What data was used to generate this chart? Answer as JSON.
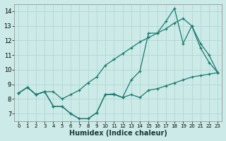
{
  "xlabel": "Humidex (Indice chaleur)",
  "bg_color": "#cceae8",
  "line_color": "#1a7a6e",
  "grid_color": "#aad4d0",
  "xlim": [
    -0.5,
    23.5
  ],
  "ylim": [
    6.5,
    14.5
  ],
  "xticks": [
    0,
    1,
    2,
    3,
    4,
    5,
    6,
    7,
    8,
    9,
    10,
    11,
    12,
    13,
    14,
    15,
    16,
    17,
    18,
    19,
    20,
    21,
    22,
    23
  ],
  "yticks": [
    7,
    8,
    9,
    10,
    11,
    12,
    13,
    14
  ],
  "series1_x": [
    0,
    1,
    2,
    3,
    4,
    5,
    6,
    7,
    8,
    9,
    10,
    11,
    12,
    13,
    14,
    15,
    16,
    17,
    18,
    19,
    20,
    21,
    22,
    23
  ],
  "series1_y": [
    8.4,
    8.8,
    8.3,
    8.5,
    7.5,
    7.5,
    7.0,
    6.65,
    6.65,
    7.05,
    8.3,
    8.3,
    8.1,
    9.3,
    9.9,
    12.5,
    12.5,
    13.3,
    14.2,
    11.8,
    13.0,
    11.8,
    11.0,
    9.8
  ],
  "series2_x": [
    0,
    1,
    2,
    3,
    4,
    5,
    6,
    7,
    8,
    9,
    10,
    11,
    12,
    13,
    14,
    15,
    16,
    17,
    18,
    19,
    20,
    21,
    22,
    23
  ],
  "series2_y": [
    8.4,
    8.8,
    8.3,
    8.5,
    8.5,
    8.0,
    8.3,
    8.6,
    9.1,
    9.5,
    10.3,
    10.7,
    11.1,
    11.5,
    11.9,
    12.2,
    12.5,
    12.8,
    13.2,
    13.5,
    13.0,
    11.5,
    10.5,
    9.8
  ],
  "series3_x": [
    0,
    1,
    2,
    3,
    4,
    5,
    6,
    7,
    8,
    9,
    10,
    11,
    12,
    13,
    14,
    15,
    16,
    17,
    18,
    19,
    20,
    21,
    22,
    23
  ],
  "series3_y": [
    8.4,
    8.8,
    8.3,
    8.5,
    7.5,
    7.5,
    7.0,
    6.65,
    6.65,
    7.05,
    8.3,
    8.35,
    8.1,
    8.3,
    8.1,
    8.6,
    8.7,
    8.9,
    9.1,
    9.3,
    9.5,
    9.6,
    9.7,
    9.8
  ]
}
